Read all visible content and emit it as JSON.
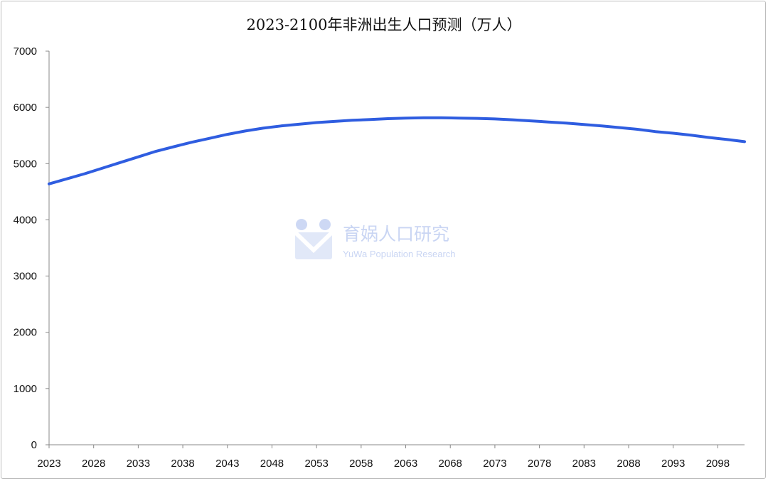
{
  "watermark": {
    "name_cn": "育娲人口研究",
    "name_en": "YuWa Population Research",
    "logo_icon": "yuwa-logo-icon",
    "color": "#9db3ea"
  },
  "chart_data": {
    "type": "line",
    "title": "2023-2100年非洲出生人口预测（万人）",
    "xlabel": "",
    "ylabel": "",
    "xlim": [
      2023,
      2101
    ],
    "ylim": [
      0,
      7000
    ],
    "yticks": [
      0,
      1000,
      2000,
      3000,
      4000,
      5000,
      6000,
      7000
    ],
    "xticks": [
      2023,
      2028,
      2033,
      2038,
      2043,
      2048,
      2053,
      2058,
      2063,
      2068,
      2073,
      2078,
      2083,
      2088,
      2093,
      2098
    ],
    "grid": false,
    "legend": "none",
    "line_color": "#2f5de0",
    "series": [
      {
        "x": [
          2023,
          2025,
          2027,
          2029,
          2031,
          2033,
          2035,
          2037,
          2039,
          2041,
          2043,
          2045,
          2047,
          2049,
          2051,
          2053,
          2055,
          2057,
          2059,
          2061,
          2063,
          2065,
          2067,
          2069,
          2071,
          2073,
          2075,
          2077,
          2079,
          2081,
          2083,
          2085,
          2087,
          2089,
          2091,
          2093,
          2095,
          2097,
          2099,
          2101
        ],
        "values": [
          4640,
          4730,
          4820,
          4920,
          5020,
          5120,
          5220,
          5300,
          5380,
          5450,
          5520,
          5580,
          5630,
          5670,
          5700,
          5730,
          5750,
          5770,
          5785,
          5800,
          5810,
          5815,
          5815,
          5810,
          5805,
          5795,
          5780,
          5760,
          5740,
          5720,
          5695,
          5670,
          5640,
          5610,
          5570,
          5540,
          5505,
          5465,
          5430,
          5390
        ]
      }
    ]
  }
}
